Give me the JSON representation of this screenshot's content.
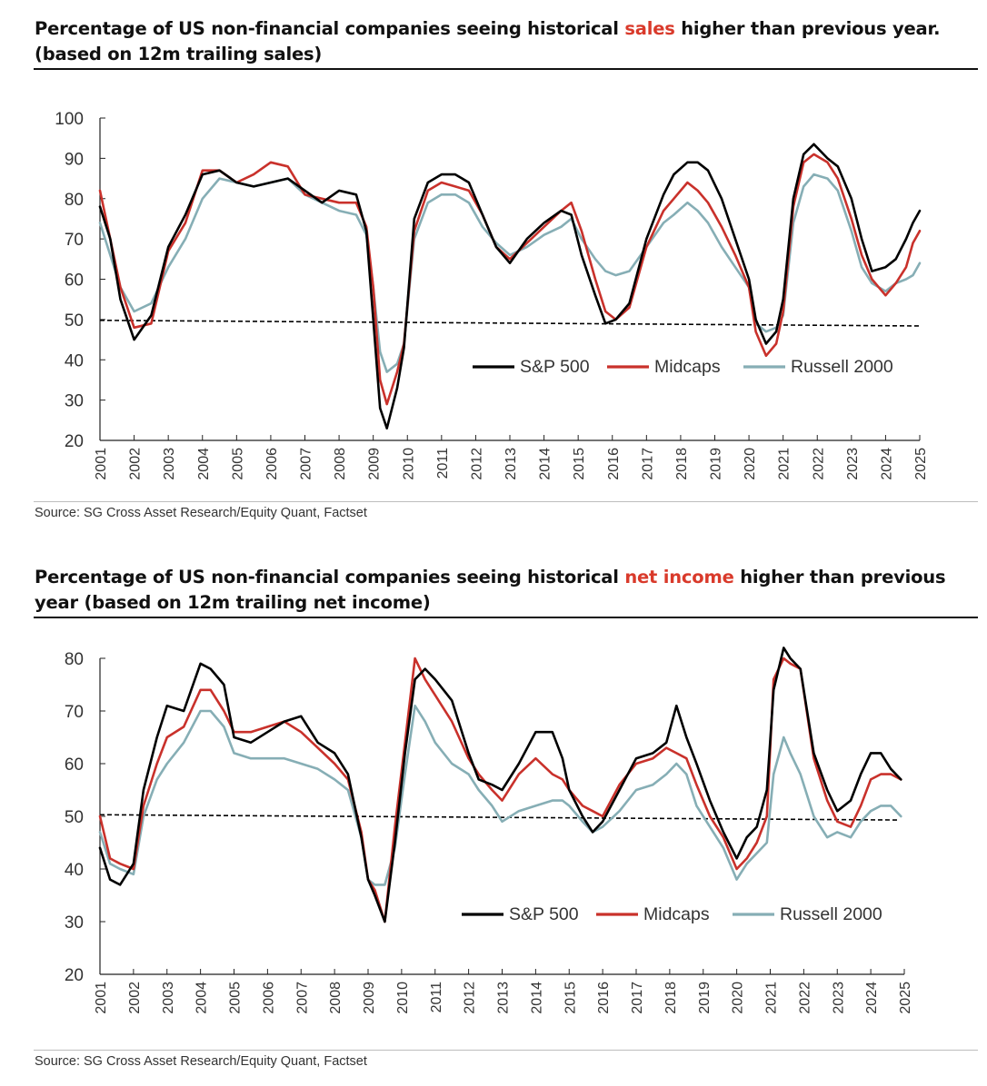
{
  "charts": [
    {
      "title_prefix": "Percentage of US non-financial companies seeing historical ",
      "title_highlight": "sales",
      "title_suffix": " higher than previous year.",
      "title_line2": "(based on 12m trailing sales)",
      "source": "Source: SG Cross Asset Research/Equity Quant, Factset"
    },
    {
      "title_prefix": "Percentage of US non-financial companies seeing historical ",
      "title_highlight": "net income",
      "title_suffix": " higher than previous",
      "title_line2": "year (based on 12m trailing net income)",
      "source": "Source: SG Cross Asset Research/Equity Quant, Factset"
    }
  ],
  "colors": {
    "sp500": "#000000",
    "midcaps": "#c9312b",
    "russell": "#86aeb5",
    "highlight": "#d93a2b",
    "reference": "#000000"
  },
  "chart_data": [
    {
      "type": "line",
      "title": "Percentage of US non-financial companies seeing historical sales higher than previous year. (based on 12m trailing sales)",
      "ylim": [
        20,
        100
      ],
      "yticks": [
        20,
        30,
        40,
        50,
        60,
        70,
        80,
        90,
        100
      ],
      "xlim": [
        2001,
        2025
      ],
      "xticks": [
        "2001",
        "2002",
        "2003",
        "2004",
        "2005",
        "2006",
        "2007",
        "2008",
        "2009",
        "2010",
        "2011",
        "2012",
        "2013",
        "2014",
        "2015",
        "2016",
        "2017",
        "2018",
        "2019",
        "2020",
        "2021",
        "2022",
        "2023",
        "2024",
        "2025"
      ],
      "legend": [
        "S&P 500",
        "Midcaps",
        "Russell 2000"
      ],
      "reference_line": {
        "x": [
          2001,
          2025
        ],
        "y": [
          49.8,
          48.4
        ]
      },
      "series": [
        {
          "name": "S&P 500",
          "x": [
            2001,
            2001.3,
            2001.6,
            2002,
            2002.5,
            2003,
            2003.5,
            2004,
            2004.5,
            2005,
            2005.5,
            2006,
            2006.5,
            2007,
            2007.5,
            2008,
            2008.5,
            2008.8,
            2009,
            2009.2,
            2009.4,
            2009.7,
            2009.9,
            2010.2,
            2010.6,
            2011,
            2011.4,
            2011.8,
            2012.2,
            2012.6,
            2013,
            2013.5,
            2014,
            2014.5,
            2014.8,
            2015.1,
            2015.5,
            2015.8,
            2016.1,
            2016.5,
            2017,
            2017.5,
            2017.8,
            2018.2,
            2018.5,
            2018.8,
            2019.2,
            2019.6,
            2020,
            2020.2,
            2020.5,
            2020.8,
            2021,
            2021.3,
            2021.6,
            2021.9,
            2022.3,
            2022.6,
            2023,
            2023.3,
            2023.6,
            2024,
            2024.3,
            2024.6,
            2024.8,
            2025
          ],
          "values": [
            78,
            70,
            55,
            45,
            51,
            68,
            76,
            86,
            87,
            84,
            83,
            84,
            85,
            82,
            79,
            82,
            81,
            72,
            50,
            28,
            23,
            33,
            43,
            75,
            84,
            86,
            86,
            84,
            76,
            68,
            64,
            70,
            74,
            77,
            76,
            66,
            56,
            49,
            50,
            54,
            70,
            81,
            86,
            89,
            89,
            87,
            80,
            70,
            60,
            50,
            44,
            47,
            55,
            80,
            91,
            93.5,
            90,
            88,
            80,
            70,
            62,
            63,
            65,
            70,
            74,
            77
          ]
        },
        {
          "name": "Midcaps",
          "x": [
            2001,
            2001.3,
            2001.6,
            2002,
            2002.5,
            2003,
            2003.5,
            2004,
            2004.5,
            2005,
            2005.5,
            2006,
            2006.5,
            2007,
            2007.5,
            2008,
            2008.5,
            2008.8,
            2009,
            2009.2,
            2009.4,
            2009.7,
            2009.9,
            2010.2,
            2010.6,
            2011,
            2011.4,
            2011.8,
            2012.2,
            2012.6,
            2013,
            2013.5,
            2014,
            2014.5,
            2014.8,
            2015.1,
            2015.5,
            2015.8,
            2016.1,
            2016.5,
            2017,
            2017.5,
            2017.8,
            2018.2,
            2018.5,
            2018.8,
            2019.2,
            2019.6,
            2020,
            2020.2,
            2020.5,
            2020.8,
            2021,
            2021.3,
            2021.6,
            2021.9,
            2022.3,
            2022.6,
            2023,
            2023.3,
            2023.6,
            2024,
            2024.3,
            2024.6,
            2024.8,
            2025
          ],
          "values": [
            82,
            70,
            58,
            48,
            49,
            67,
            74,
            87,
            87,
            84,
            86,
            89,
            88,
            81,
            80,
            79,
            79,
            73,
            58,
            35,
            29,
            37,
            44,
            72,
            82,
            84,
            83,
            82,
            76,
            68,
            65,
            69,
            73,
            77,
            79,
            72,
            60,
            52,
            50,
            53,
            68,
            77,
            80,
            84,
            82,
            79,
            73,
            66,
            58,
            47,
            41,
            44,
            52,
            78,
            89,
            91,
            89,
            85,
            75,
            66,
            60,
            56,
            59,
            63,
            69,
            72
          ]
        },
        {
          "name": "Russell 2000",
          "x": [
            2001,
            2001.3,
            2001.6,
            2002,
            2002.5,
            2003,
            2003.5,
            2004,
            2004.5,
            2005,
            2005.5,
            2006,
            2006.5,
            2007,
            2007.5,
            2008,
            2008.5,
            2008.8,
            2009,
            2009.2,
            2009.4,
            2009.7,
            2009.9,
            2010.2,
            2010.6,
            2011,
            2011.4,
            2011.8,
            2012.2,
            2012.6,
            2013,
            2013.5,
            2014,
            2014.5,
            2014.8,
            2015.1,
            2015.5,
            2015.8,
            2016.1,
            2016.5,
            2017,
            2017.5,
            2017.8,
            2018.2,
            2018.5,
            2018.8,
            2019.2,
            2019.6,
            2020,
            2020.2,
            2020.5,
            2020.8,
            2021,
            2021.3,
            2021.6,
            2021.9,
            2022.3,
            2022.6,
            2023,
            2023.3,
            2023.6,
            2024,
            2024.3,
            2024.6,
            2024.8,
            2025
          ],
          "values": [
            74,
            66,
            58,
            52,
            54,
            63,
            70,
            80,
            85,
            84,
            83,
            84,
            85,
            81,
            79,
            77,
            76,
            71,
            58,
            42,
            37,
            39,
            44,
            70,
            79,
            81,
            81,
            79,
            73,
            69,
            66,
            68,
            71,
            73,
            75,
            70,
            65,
            62,
            61,
            62,
            68,
            74,
            76,
            79,
            77,
            74,
            68,
            63,
            58,
            49,
            47,
            48,
            51,
            74,
            83,
            86,
            85,
            82,
            72,
            63,
            59,
            57,
            59,
            60,
            61,
            64
          ]
        }
      ]
    },
    {
      "type": "line",
      "title": "Percentage of US non-financial companies seeing historical net income higher than previous year (based on 12m trailing net income)",
      "ylim": [
        20,
        80
      ],
      "yticks": [
        20,
        30,
        40,
        50,
        60,
        70,
        80
      ],
      "xlim": [
        2001,
        2025
      ],
      "xticks": [
        "2001",
        "2002",
        "2003",
        "2004",
        "2005",
        "2006",
        "2007",
        "2008",
        "2009",
        "2010",
        "2011",
        "2012",
        "2013",
        "2014",
        "2015",
        "2016",
        "2017",
        "2018",
        "2019",
        "2020",
        "2021",
        "2022",
        "2023",
        "2024",
        "2025"
      ],
      "legend": [
        "S&P 500",
        "Midcaps",
        "Russell 2000"
      ],
      "reference_line": {
        "x": [
          2001,
          2024.8
        ],
        "y": [
          50.3,
          49.3
        ]
      },
      "series": [
        {
          "name": "S&P 500",
          "x": [
            2001,
            2001.3,
            2001.6,
            2002,
            2002.3,
            2002.7,
            2003,
            2003.5,
            2004,
            2004.3,
            2004.7,
            2005,
            2005.5,
            2006,
            2006.5,
            2007,
            2007.5,
            2008,
            2008.4,
            2008.8,
            2009,
            2009.2,
            2009.5,
            2009.8,
            2010.1,
            2010.4,
            2010.7,
            2011,
            2011.5,
            2012,
            2012.3,
            2012.7,
            2013,
            2013.5,
            2014,
            2014.5,
            2014.8,
            2015,
            2015.4,
            2015.7,
            2016,
            2016.5,
            2017,
            2017.5,
            2017.9,
            2018.2,
            2018.5,
            2018.8,
            2019.2,
            2019.6,
            2020,
            2020.3,
            2020.6,
            2020.9,
            2021.1,
            2021.4,
            2021.6,
            2021.9,
            2022.3,
            2022.7,
            2023,
            2023.4,
            2023.7,
            2024,
            2024.3,
            2024.6,
            2024.9
          ],
          "values": [
            44,
            38,
            37,
            41,
            55,
            65,
            71,
            70,
            79,
            78,
            75,
            65,
            64,
            66,
            68,
            69,
            64,
            62,
            58,
            46,
            38,
            35,
            30,
            45,
            62,
            76,
            78,
            76,
            72,
            62,
            57,
            56,
            55,
            60,
            66,
            66,
            61,
            55,
            50,
            47,
            49,
            55,
            61,
            62,
            64,
            71,
            65,
            60,
            53,
            47,
            42,
            46,
            48,
            55,
            74,
            82,
            80,
            78,
            62,
            55,
            51,
            53,
            58,
            62,
            62,
            59,
            57
          ]
        },
        {
          "name": "Midcaps",
          "x": [
            2001,
            2001.3,
            2001.6,
            2002,
            2002.3,
            2002.7,
            2003,
            2003.5,
            2004,
            2004.3,
            2004.7,
            2005,
            2005.5,
            2006,
            2006.5,
            2007,
            2007.5,
            2008,
            2008.4,
            2008.8,
            2009,
            2009.2,
            2009.5,
            2009.8,
            2010.1,
            2010.4,
            2010.7,
            2011,
            2011.5,
            2012,
            2012.3,
            2012.7,
            2013,
            2013.5,
            2014,
            2014.5,
            2014.8,
            2015,
            2015.4,
            2015.7,
            2016,
            2016.5,
            2017,
            2017.5,
            2017.9,
            2018.2,
            2018.5,
            2018.8,
            2019.2,
            2019.6,
            2020,
            2020.3,
            2020.6,
            2020.9,
            2021.1,
            2021.4,
            2021.6,
            2021.9,
            2022.3,
            2022.7,
            2023,
            2023.4,
            2023.7,
            2024,
            2024.3,
            2024.6,
            2024.9
          ],
          "values": [
            50,
            42,
            41,
            40,
            52,
            60,
            65,
            67,
            74,
            74,
            70,
            66,
            66,
            67,
            68,
            66,
            63,
            60,
            57,
            47,
            38,
            36,
            30,
            48,
            64,
            80,
            76,
            73,
            68,
            61,
            58,
            55,
            53,
            58,
            61,
            58,
            57,
            55,
            52,
            51,
            50,
            56,
            60,
            61,
            63,
            62,
            61,
            56,
            50,
            46,
            40,
            42,
            45,
            50,
            76,
            80,
            79,
            78,
            61,
            53,
            49,
            48,
            52,
            57,
            58,
            58,
            57
          ]
        },
        {
          "name": "Russell 2000",
          "x": [
            2001,
            2001.3,
            2001.6,
            2002,
            2002.3,
            2002.7,
            2003,
            2003.5,
            2004,
            2004.3,
            2004.7,
            2005,
            2005.5,
            2006,
            2006.5,
            2007,
            2007.5,
            2008,
            2008.4,
            2008.8,
            2009,
            2009.2,
            2009.5,
            2009.8,
            2010.1,
            2010.4,
            2010.7,
            2011,
            2011.5,
            2012,
            2012.3,
            2012.7,
            2013,
            2013.5,
            2014,
            2014.5,
            2014.8,
            2015,
            2015.4,
            2015.7,
            2016,
            2016.5,
            2017,
            2017.5,
            2017.9,
            2018.2,
            2018.5,
            2018.8,
            2019.2,
            2019.6,
            2020,
            2020.3,
            2020.6,
            2020.9,
            2021.1,
            2021.4,
            2021.6,
            2021.9,
            2022.3,
            2022.7,
            2023,
            2023.4,
            2023.7,
            2024,
            2024.3,
            2024.6,
            2024.9
          ],
          "values": [
            47,
            41,
            40,
            39,
            50,
            57,
            60,
            64,
            70,
            70,
            67,
            62,
            61,
            61,
            61,
            60,
            59,
            57,
            55,
            46,
            38,
            37,
            37,
            44,
            58,
            71,
            68,
            64,
            60,
            58,
            55,
            52,
            49,
            51,
            52,
            53,
            53,
            52,
            49,
            47,
            48,
            51,
            55,
            56,
            58,
            60,
            58,
            52,
            48,
            44,
            38,
            41,
            43,
            45,
            58,
            65,
            62,
            58,
            50,
            46,
            47,
            46,
            49,
            51,
            52,
            52,
            50
          ]
        }
      ]
    }
  ]
}
